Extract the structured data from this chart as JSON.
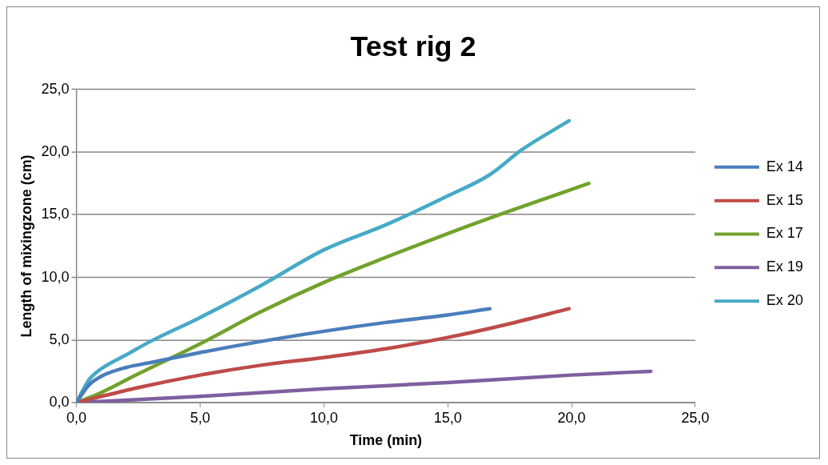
{
  "chart_data": {
    "type": "line",
    "title": "Test rig 2",
    "xlabel": "Time (min)",
    "ylabel": "Length of mixingzone (cm)",
    "xlim": [
      0,
      25
    ],
    "xticks": [
      {
        "value": 0,
        "label": "0,0"
      },
      {
        "value": 5,
        "label": "5,0"
      },
      {
        "value": 10,
        "label": "10,0"
      },
      {
        "value": 15,
        "label": "15,0"
      },
      {
        "value": 20,
        "label": "20,0"
      },
      {
        "value": 25,
        "label": "25,0"
      }
    ],
    "ylim": [
      0,
      25
    ],
    "yticks": [
      {
        "value": 0,
        "label": "0,0"
      },
      {
        "value": 5,
        "label": "5,0"
      },
      {
        "value": 10,
        "label": "10,0"
      },
      {
        "value": 15,
        "label": "15,0"
      },
      {
        "value": 20,
        "label": "20,0"
      },
      {
        "value": 25,
        "label": "25,0"
      }
    ],
    "grid": "y",
    "legend": "right",
    "marker": "none",
    "line_style": "solid",
    "series": [
      {
        "name": "Ex 14",
        "color": "#4a7ebb",
        "x": [
          0,
          0.5,
          1,
          2,
          3,
          5,
          7.5,
          10,
          12.5,
          15,
          16.7
        ],
        "values": [
          0,
          1.4,
          2.1,
          2.8,
          3.2,
          4.0,
          4.9,
          5.7,
          6.4,
          7.0,
          7.5
        ]
      },
      {
        "name": "Ex 15",
        "color": "#be4b48",
        "x": [
          0,
          2.5,
          5,
          7.5,
          10,
          12.5,
          15,
          17.5,
          19.9
        ],
        "values": [
          0,
          1.2,
          2.2,
          3.0,
          3.6,
          4.3,
          5.2,
          6.3,
          7.5
        ]
      },
      {
        "name": "Ex 17",
        "color": "#71a22c",
        "x": [
          0,
          1,
          2.5,
          5,
          7.5,
          10,
          12.5,
          15,
          17.5,
          20.7
        ],
        "values": [
          0,
          0.8,
          2.3,
          4.7,
          7.3,
          9.6,
          11.6,
          13.5,
          15.3,
          17.5
        ]
      },
      {
        "name": "Ex 19",
        "color": "#7d60a0",
        "x": [
          0,
          5,
          10,
          15,
          20,
          23.2
        ],
        "values": [
          0,
          0.5,
          1.1,
          1.6,
          2.2,
          2.5
        ]
      },
      {
        "name": "Ex 20",
        "color": "#46aac5",
        "x": [
          0,
          0.5,
          1,
          2,
          3,
          5,
          7.5,
          10,
          12.5,
          15,
          16.7,
          18,
          19.9
        ],
        "values": [
          0,
          1.8,
          2.7,
          3.8,
          4.9,
          6.8,
          9.4,
          12.2,
          14.2,
          16.5,
          18.2,
          20.2,
          22.5
        ]
      }
    ]
  }
}
